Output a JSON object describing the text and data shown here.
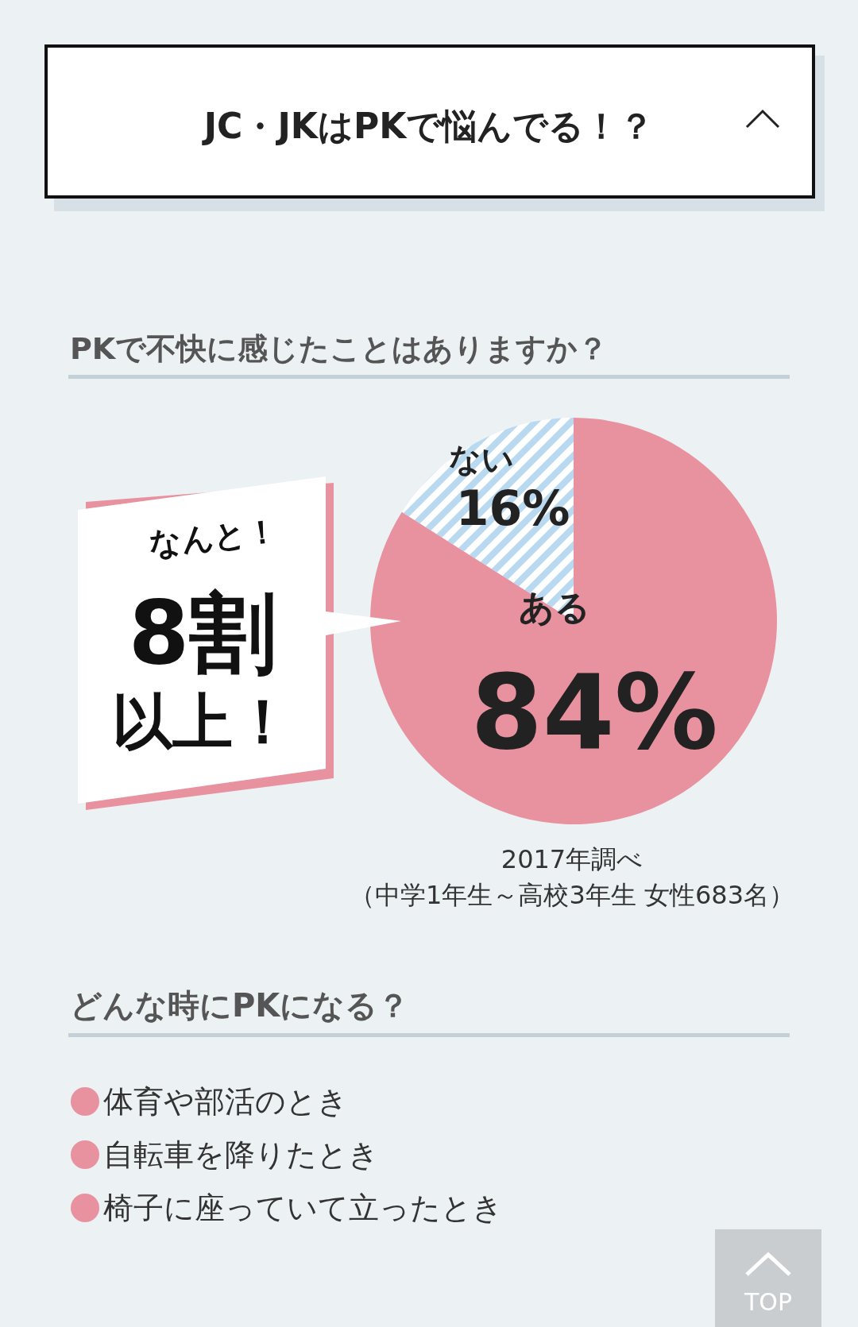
{
  "chart_data": {
    "type": "pie",
    "title": "PKで不快に感じたことはありますか？",
    "categories": [
      "ない",
      "ある"
    ],
    "values": [
      16,
      84
    ],
    "colors": [
      "#b9d9f0",
      "#e8919f"
    ],
    "value_labels": [
      "16%",
      "84%"
    ],
    "annotations": [
      "JC・JKはPKで悩んでる！？",
      "なんと！",
      "8割",
      "以上！",
      "2017年調べ",
      "（中学1年生～高校3年生 女性683名）",
      "どんな時にPKになる？",
      "体育や部活のとき",
      "自転車を降りたとき",
      "椅子に座っていて立ったとき",
      "TOP"
    ]
  }
}
